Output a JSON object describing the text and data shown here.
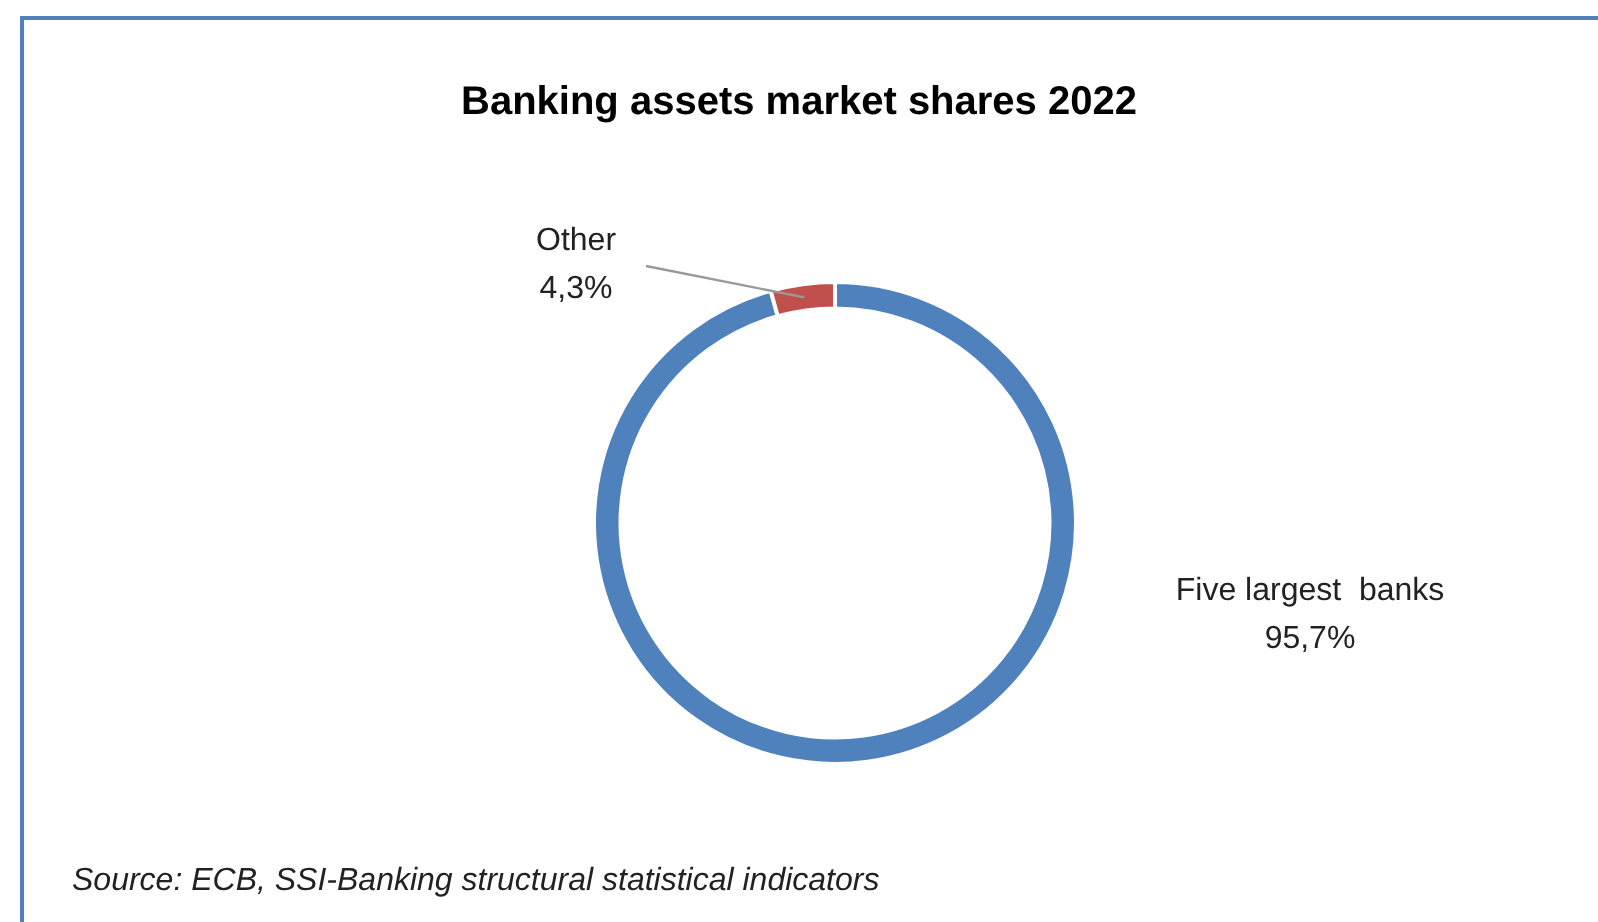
{
  "chart_data": {
    "type": "donut",
    "title": "Banking assets market shares 2022",
    "categories": [
      "Five largest  banks",
      "Other"
    ],
    "values": [
      95.7,
      4.3
    ],
    "colors": [
      "#4f81bd",
      "#c0504d"
    ],
    "value_labels": [
      "95,7%",
      "4,3%"
    ],
    "legend": false,
    "annotations": [
      "Source: ECB, SSI-Banking structural statistical indicators"
    ]
  }
}
